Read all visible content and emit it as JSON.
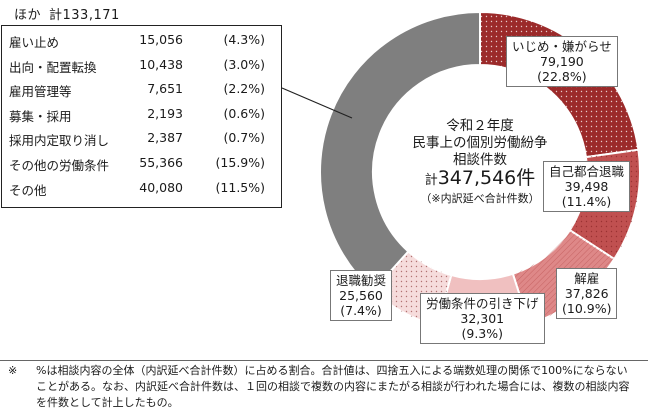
{
  "chart_data": {
    "type": "pie",
    "variant": "donut",
    "center": {
      "title_lines": [
        "令和２年度",
        "民事上の個別労働紛争",
        "相談件数"
      ],
      "total_prefix": "計",
      "total_value": "347,546",
      "total_unit": "件",
      "note": "（※内訳延べ合計件数）"
    },
    "segments": [
      {
        "name": "いじめ・嫌がらせ",
        "count": "79,190",
        "pct": "(22.8%)",
        "value": 79190,
        "color": "#9b2a2a",
        "pattern": "dots-light"
      },
      {
        "name": "自己都合退職",
        "count": "39,498",
        "pct": "(11.4%)",
        "value": 39498,
        "color": "#c05050",
        "pattern": "dots-dark"
      },
      {
        "name": "解雇",
        "count": "37,826",
        "pct": "(10.9%)",
        "value": 37826,
        "color": "#de8888",
        "pattern": "hatch"
      },
      {
        "name": "労働条件の引き下げ",
        "count": "32,301",
        "pct": "(9.3%)",
        "value": 32301,
        "color": "#f0c0c0",
        "pattern": "none"
      },
      {
        "name": "退職勧奨",
        "count": "25,560",
        "pct": "(7.4%)",
        "value": 25560,
        "color": "#f6dcdc",
        "pattern": "dots-dark"
      },
      {
        "name": "ほか",
        "value": 133171,
        "color": "#7f7f7f",
        "pattern": "none"
      }
    ],
    "other_breakdown": {
      "title": "ほか",
      "total_label": "計133,171",
      "rows": [
        {
          "name": "雇い止め",
          "count": "15,056",
          "pct": "(4.3%)"
        },
        {
          "name": "出向・配置転換",
          "count": "10,438",
          "pct": "(3.0%)"
        },
        {
          "name": "雇用管理等",
          "count": "7,651",
          "pct": "(2.2%)"
        },
        {
          "name": "募集・採用",
          "count": "2,193",
          "pct": "(0.6%)"
        },
        {
          "name": "採用内定取り消し",
          "count": "2,387",
          "pct": "(0.7%)"
        },
        {
          "name": "その他の労働条件",
          "count": "55,366",
          "pct": "(15.9%)"
        },
        {
          "name": "その他",
          "count": "40,080",
          "pct": "(11.5%)"
        }
      ]
    }
  },
  "footnote": {
    "mark": "※",
    "text": "%は相談内容の全体（内訳延べ合計件数）に占める割合。合計値は、四捨五入による端数処理の関係で100%にならないことがある。なお、内訳延べ合計件数は、１回の相談で複数の内容にまたがる相談が行われた場合には、複数の相談内容を件数として計上したもの。"
  }
}
